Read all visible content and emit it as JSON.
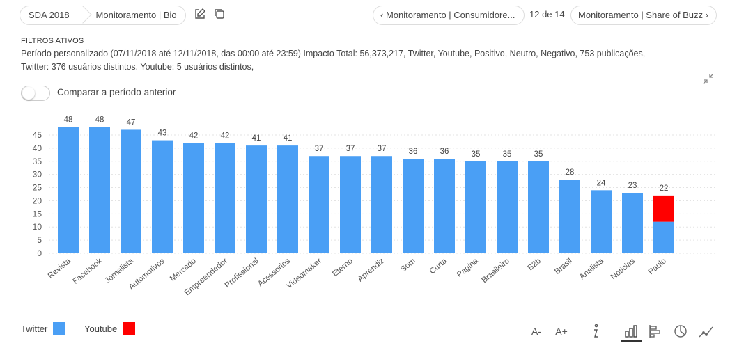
{
  "breadcrumb": {
    "project": "SDA 2018",
    "dashboard": "Monitoramento | Bio"
  },
  "nav": {
    "prev": "Monitoramento | Consumidore...",
    "pager": "12 de 14",
    "next": "Monitoramento | Share of Buzz"
  },
  "filters": {
    "title": "FILTROS ATIVOS",
    "line1": "Período personalizado (07/11/2018 até 12/11/2018, das 00:00 até 23:59) Impacto Total: 56,373,217, Twitter, Youtube, Positivo, Neutro, Negativo, 753 publicações,",
    "line2": "Twitter: 376 usuários distintos. Youtube: 5 usuários distintos,"
  },
  "compare_toggle": {
    "label": "Comparar a período anterior",
    "on": false
  },
  "legend": [
    {
      "name": "Twitter",
      "color": "#4a9ff5"
    },
    {
      "name": "Youtube",
      "color": "#ff0000"
    }
  ],
  "tools": {
    "font_smaller": "A-",
    "font_larger": "A+"
  },
  "chart_data": {
    "type": "bar",
    "stacked": true,
    "categories": [
      "Revista",
      "Facebook",
      "Jornalista",
      "Automotivos",
      "Mercado",
      "Empreendedor",
      "Profissional",
      "Acessorios",
      "Videomaker",
      "Eterno",
      "Aprendiz",
      "Som",
      "Curta",
      "Pagina",
      "Brasileiro",
      "B2b",
      "Brasil",
      "Analista",
      "Noticias",
      "Paulo"
    ],
    "series": [
      {
        "name": "Twitter",
        "color": "#4a9ff5",
        "values": [
          48,
          48,
          47,
          43,
          42,
          42,
          41,
          41,
          37,
          37,
          37,
          36,
          36,
          35,
          35,
          35,
          28,
          24,
          23,
          12
        ]
      },
      {
        "name": "Youtube",
        "color": "#ff0000",
        "values": [
          0,
          0,
          0,
          0,
          0,
          0,
          0,
          0,
          0,
          0,
          0,
          0,
          0,
          0,
          0,
          0,
          0,
          0,
          0,
          10
        ]
      }
    ],
    "totals": [
      48,
      48,
      47,
      43,
      42,
      42,
      41,
      41,
      37,
      37,
      37,
      36,
      36,
      35,
      35,
      35,
      28,
      24,
      23,
      22
    ],
    "yticks": [
      0,
      5,
      10,
      15,
      20,
      25,
      30,
      35,
      40,
      45
    ],
    "ylim": [
      0,
      50
    ],
    "grid": true,
    "legend_position": "bottom-left"
  }
}
